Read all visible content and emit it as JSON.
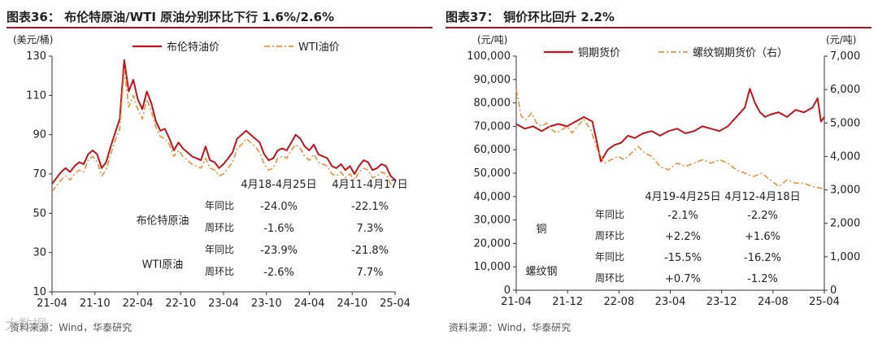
{
  "charts": [
    {
      "fig": "图表36：",
      "heading": "布伦特原油/WTI 原油分别环比下行 1.6%/2.6%",
      "source": "资料来源：Wind，华泰研究"
    },
    {
      "fig": "图表37：",
      "heading": "铜价环比回升 2.2%",
      "source": "资料来源：Wind，华泰研究"
    }
  ],
  "watermark": "大数据",
  "colors": {
    "primary": "#c0141c",
    "secondary": "#e8913a"
  },
  "chart_data": [
    {
      "type": "line",
      "y_unit": "(美元/桶)",
      "ylim": [
        10,
        130
      ],
      "yticks": [
        10,
        30,
        50,
        70,
        90,
        110,
        130
      ],
      "x_ticks": [
        "21-04",
        "21-10",
        "22-04",
        "22-10",
        "23-04",
        "23-10",
        "24-04",
        "24-10",
        "25-04"
      ],
      "legend_position": "top",
      "series": [
        {
          "name": "布伦特油价",
          "style": "solid",
          "color": "#c0141c",
          "values": [
            [
              0,
              65
            ],
            [
              3,
              68
            ],
            [
              6,
              71
            ],
            [
              9,
              73
            ],
            [
              12,
              71
            ],
            [
              15,
              74
            ],
            [
              18,
              76
            ],
            [
              21,
              75
            ],
            [
              24,
              80
            ],
            [
              27,
              82
            ],
            [
              30,
              80
            ],
            [
              33,
              73
            ],
            [
              36,
              76
            ],
            [
              39,
              84
            ],
            [
              42,
              91
            ],
            [
              45,
              98
            ],
            [
              48,
              128
            ],
            [
              51,
              112
            ],
            [
              54,
              118
            ],
            [
              57,
              108
            ],
            [
              60,
              103
            ],
            [
              63,
              112
            ],
            [
              66,
              106
            ],
            [
              69,
              97
            ],
            [
              72,
              92
            ],
            [
              75,
              93
            ],
            [
              78,
              88
            ],
            [
              81,
              82
            ],
            [
              84,
              86
            ],
            [
              87,
              83
            ],
            [
              90,
              81
            ],
            [
              93,
              79
            ],
            [
              96,
              78
            ],
            [
              99,
              77
            ],
            [
              102,
              84
            ],
            [
              105,
              77
            ],
            [
              108,
              76
            ],
            [
              111,
              73
            ],
            [
              114,
              75
            ],
            [
              117,
              78
            ],
            [
              120,
              81
            ],
            [
              123,
              88
            ],
            [
              126,
              90
            ],
            [
              129,
              92
            ],
            [
              132,
              90
            ],
            [
              135,
              88
            ],
            [
              138,
              86
            ],
            [
              141,
              80
            ],
            [
              144,
              77
            ],
            [
              147,
              78
            ],
            [
              150,
              82
            ],
            [
              153,
              83
            ],
            [
              156,
              82
            ],
            [
              159,
              86
            ],
            [
              162,
              90
            ],
            [
              165,
              88
            ],
            [
              168,
              84
            ],
            [
              171,
              82
            ],
            [
              174,
              85
            ],
            [
              177,
              80
            ],
            [
              180,
              79
            ],
            [
              183,
              78
            ],
            [
              186,
              74
            ],
            [
              189,
              73
            ],
            [
              192,
              75
            ],
            [
              195,
              72
            ],
            [
              198,
              74
            ],
            [
              201,
              70
            ],
            [
              204,
              74
            ],
            [
              207,
              77
            ],
            [
              210,
              76
            ],
            [
              213,
              72
            ],
            [
              216,
              73
            ],
            [
              219,
              75
            ],
            [
              222,
              74
            ],
            [
              225,
              69
            ],
            [
              228,
              67
            ]
          ]
        },
        {
          "name": "WTI油价",
          "style": "dashdot",
          "color": "#e8913a",
          "values": [
            [
              0,
              61
            ],
            [
              3,
              64
            ],
            [
              6,
              67
            ],
            [
              9,
              69
            ],
            [
              12,
              67
            ],
            [
              15,
              70
            ],
            [
              18,
              72
            ],
            [
              21,
              71
            ],
            [
              24,
              77
            ],
            [
              27,
              79
            ],
            [
              30,
              76
            ],
            [
              33,
              69
            ],
            [
              36,
              72
            ],
            [
              39,
              80
            ],
            [
              42,
              87
            ],
            [
              45,
              93
            ],
            [
              48,
              123
            ],
            [
              51,
              104
            ],
            [
              54,
              110
            ],
            [
              57,
              103
            ],
            [
              60,
              98
            ],
            [
              63,
              108
            ],
            [
              66,
              102
            ],
            [
              69,
              94
            ],
            [
              72,
              89
            ],
            [
              75,
              88
            ],
            [
              78,
              85
            ],
            [
              81,
              79
            ],
            [
              84,
              82
            ],
            [
              87,
              79
            ],
            [
              90,
              77
            ],
            [
              93,
              75
            ],
            [
              96,
              74
            ],
            [
              99,
              73
            ],
            [
              102,
              78
            ],
            [
              105,
              73
            ],
            [
              108,
              72
            ],
            [
              111,
              69
            ],
            [
              114,
              70
            ],
            [
              117,
              73
            ],
            [
              120,
              76
            ],
            [
              123,
              83
            ],
            [
              126,
              85
            ],
            [
              129,
              88
            ],
            [
              132,
              86
            ],
            [
              135,
              84
            ],
            [
              138,
              81
            ],
            [
              141,
              75
            ],
            [
              144,
              72
            ],
            [
              147,
              73
            ],
            [
              150,
              78
            ],
            [
              153,
              79
            ],
            [
              156,
              78
            ],
            [
              159,
              82
            ],
            [
              162,
              85
            ],
            [
              165,
              83
            ],
            [
              168,
              79
            ],
            [
              171,
              77
            ],
            [
              174,
              80
            ],
            [
              177,
              76
            ],
            [
              180,
              75
            ],
            [
              183,
              74
            ],
            [
              186,
              70
            ],
            [
              189,
              69
            ],
            [
              192,
              71
            ],
            [
              195,
              68
            ],
            [
              198,
              70
            ],
            [
              201,
              67
            ],
            [
              204,
              71
            ],
            [
              207,
              73
            ],
            [
              210,
              72
            ],
            [
              213,
              68
            ],
            [
              216,
              69
            ],
            [
              219,
              71
            ],
            [
              222,
              70
            ],
            [
              225,
              65
            ],
            [
              228,
              63
            ]
          ]
        }
      ],
      "table": {
        "columns": [
          "4月18-4月25日",
          "4月11-4月17日"
        ],
        "groups": [
          {
            "name": "布伦特原油",
            "rows": [
              {
                "metric": "年同比",
                "values": [
                  "-24.0%",
                  "-22.1%"
                ]
              },
              {
                "metric": "周环比",
                "values": [
                  "-1.6%",
                  "7.3%"
                ]
              }
            ]
          },
          {
            "name": "WTI原油",
            "rows": [
              {
                "metric": "年同比",
                "values": [
                  "-23.9%",
                  "-21.8%"
                ]
              },
              {
                "metric": "周环比",
                "values": [
                  "-2.6%",
                  "7.7%"
                ]
              }
            ]
          }
        ]
      }
    },
    {
      "type": "line",
      "y_unit": "(元/吨)",
      "y2_unit": "(元/吨)",
      "ylim": [
        0,
        100000
      ],
      "yticks": [
        "0",
        "10,000",
        "20,000",
        "30,000",
        "40,000",
        "50,000",
        "60,000",
        "70,000",
        "80,000",
        "90,000",
        "100,000"
      ],
      "y2lim": [
        0,
        7000
      ],
      "y2ticks": [
        "0",
        "1,000",
        "2,000",
        "3,000",
        "4,000",
        "5,000",
        "6,000",
        "7,000"
      ],
      "x_ticks": [
        "21-04",
        "21-12",
        "22-08",
        "23-04",
        "23-12",
        "24-08",
        "25-04"
      ],
      "legend_position": "top",
      "series": [
        {
          "name": "铜期货价",
          "style": "solid",
          "color": "#c0141c",
          "axis": "left",
          "values": [
            [
              0,
              71000
            ],
            [
              5,
              69000
            ],
            [
              10,
              70000
            ],
            [
              15,
              68000
            ],
            [
              20,
              70000
            ],
            [
              25,
              71000
            ],
            [
              30,
              70000
            ],
            [
              35,
              72000
            ],
            [
              40,
              74000
            ],
            [
              45,
              72000
            ],
            [
              48,
              62000
            ],
            [
              50,
              55000
            ],
            [
              54,
              60000
            ],
            [
              58,
              62000
            ],
            [
              62,
              63000
            ],
            [
              66,
              66000
            ],
            [
              70,
              65000
            ],
            [
              75,
              67000
            ],
            [
              80,
              68000
            ],
            [
              85,
              66000
            ],
            [
              90,
              68000
            ],
            [
              95,
              69000
            ],
            [
              100,
              67000
            ],
            [
              105,
              68000
            ],
            [
              110,
              70000
            ],
            [
              115,
              69000
            ],
            [
              120,
              68000
            ],
            [
              125,
              70000
            ],
            [
              130,
              74000
            ],
            [
              135,
              78000
            ],
            [
              138,
              86000
            ],
            [
              141,
              80000
            ],
            [
              144,
              76000
            ],
            [
              147,
              74000
            ],
            [
              150,
              75000
            ],
            [
              155,
              76000
            ],
            [
              160,
              74000
            ],
            [
              165,
              77000
            ],
            [
              170,
              76000
            ],
            [
              175,
              78000
            ],
            [
              178,
              82000
            ],
            [
              180,
              72000
            ],
            [
              182,
              74000
            ]
          ]
        },
        {
          "name": "螺纹钢期货价（右）",
          "style": "dashdot",
          "color": "#e8913a",
          "axis": "right",
          "values": [
            [
              0,
              6000
            ],
            [
              3,
              5200
            ],
            [
              6,
              5100
            ],
            [
              9,
              5300
            ],
            [
              12,
              5000
            ],
            [
              15,
              4900
            ],
            [
              18,
              5000
            ],
            [
              21,
              4800
            ],
            [
              24,
              4700
            ],
            [
              27,
              4800
            ],
            [
              30,
              4900
            ],
            [
              33,
              4700
            ],
            [
              36,
              4900
            ],
            [
              40,
              5100
            ],
            [
              44,
              4800
            ],
            [
              48,
              4200
            ],
            [
              52,
              3800
            ],
            [
              56,
              3900
            ],
            [
              60,
              4000
            ],
            [
              64,
              3900
            ],
            [
              68,
              4100
            ],
            [
              72,
              4300
            ],
            [
              76,
              4100
            ],
            [
              80,
              4000
            ],
            [
              85,
              3700
            ],
            [
              90,
              3600
            ],
            [
              95,
              3800
            ],
            [
              100,
              3700
            ],
            [
              105,
              3800
            ],
            [
              110,
              3900
            ],
            [
              115,
              3800
            ],
            [
              120,
              3900
            ],
            [
              125,
              3800
            ],
            [
              130,
              3600
            ],
            [
              135,
              3500
            ],
            [
              140,
              3400
            ],
            [
              145,
              3500
            ],
            [
              150,
              3300
            ],
            [
              155,
              3100
            ],
            [
              160,
              3300
            ],
            [
              165,
              3200
            ],
            [
              170,
              3200
            ],
            [
              175,
              3100
            ],
            [
              180,
              3050
            ],
            [
              182,
              3050
            ]
          ]
        }
      ],
      "table": {
        "columns": [
          "4月19-4月25日",
          "4月12-4月18日"
        ],
        "groups": [
          {
            "name": "铜",
            "rows": [
              {
                "metric": "年同比",
                "values": [
                  "-2.1%",
                  "-2.2%"
                ]
              },
              {
                "metric": "周环比",
                "values": [
                  "+2.2%",
                  "+1.6%"
                ]
              }
            ]
          },
          {
            "name": "螺纹钢",
            "rows": [
              {
                "metric": "年同比",
                "values": [
                  "-15.5%",
                  "-16.2%"
                ]
              },
              {
                "metric": "周环比",
                "values": [
                  "+0.7%",
                  "-1.2%"
                ]
              }
            ]
          }
        ]
      }
    }
  ]
}
